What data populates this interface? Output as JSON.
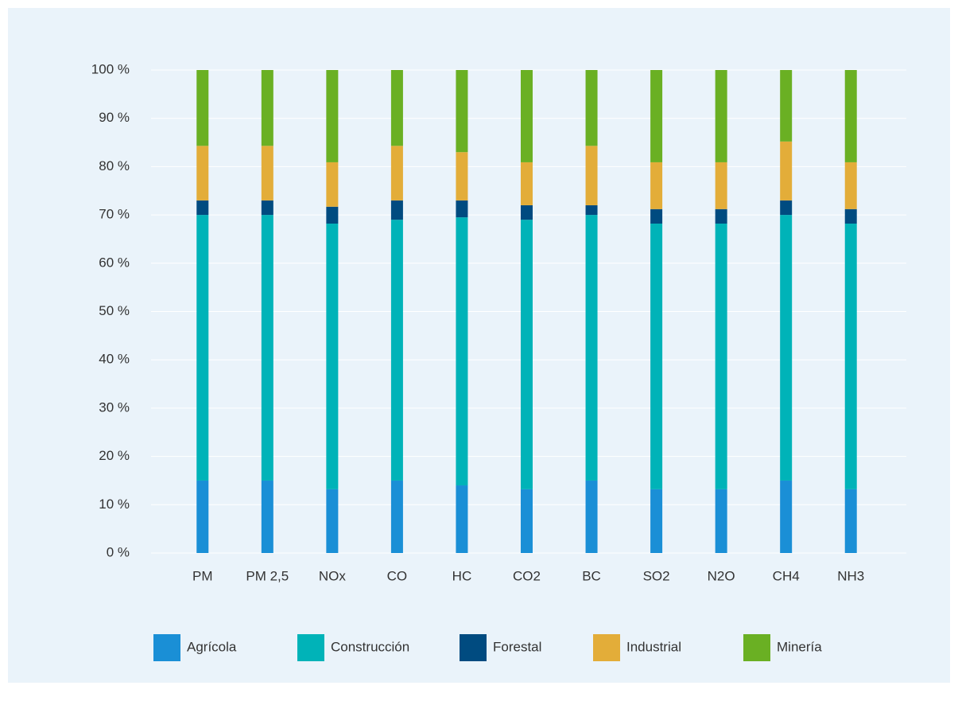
{
  "chart_data": {
    "type": "stacked_bar",
    "categories": [
      "PM",
      "PM 2,5",
      "NOx",
      "CO",
      "HC",
      "CO2",
      "BC",
      "SO2",
      "N2O",
      "CH4",
      "NH3"
    ],
    "series": [
      {
        "name": "Agrícola",
        "color": "#1a8fd6",
        "values": [
          15,
          15,
          13.2,
          15,
          14,
          13.2,
          15,
          13.2,
          13.2,
          15,
          13.2
        ]
      },
      {
        "name": "Construcción",
        "color": "#00b3b8",
        "values": [
          55,
          55,
          55,
          54,
          55.5,
          55.8,
          55,
          55,
          55,
          55,
          55
        ]
      },
      {
        "name": "Forestal",
        "color": "#004b80",
        "values": [
          3,
          3,
          3.5,
          4,
          3.5,
          3,
          2,
          3,
          3,
          3,
          3
        ]
      },
      {
        "name": "Industrial",
        "color": "#e3ad39",
        "values": [
          11.3,
          11.3,
          9.2,
          11.3,
          10,
          8.9,
          12.3,
          9.7,
          9.7,
          12.2,
          9.7
        ]
      },
      {
        "name": "Minería",
        "color": "#6ab023",
        "values": [
          15.7,
          15.7,
          19.1,
          15.7,
          17,
          19.1,
          15.7,
          19.1,
          19.1,
          14.8,
          19.1
        ]
      }
    ],
    "ylim": [
      0,
      100
    ],
    "yticks": [
      {
        "value": 0,
        "label": "0 %"
      },
      {
        "value": 10,
        "label": "10 %"
      },
      {
        "value": 20,
        "label": "20 %"
      },
      {
        "value": 30,
        "label": "30 %"
      },
      {
        "value": 40,
        "label": "40 %"
      },
      {
        "value": 50,
        "label": "50 %"
      },
      {
        "value": 60,
        "label": "60 %"
      },
      {
        "value": 70,
        "label": "70 %"
      },
      {
        "value": 80,
        "label": "80 %"
      },
      {
        "value": 90,
        "label": "90 %"
      },
      {
        "value": 100,
        "label": "100 %"
      }
    ],
    "grid": true,
    "legend": "bottom"
  }
}
